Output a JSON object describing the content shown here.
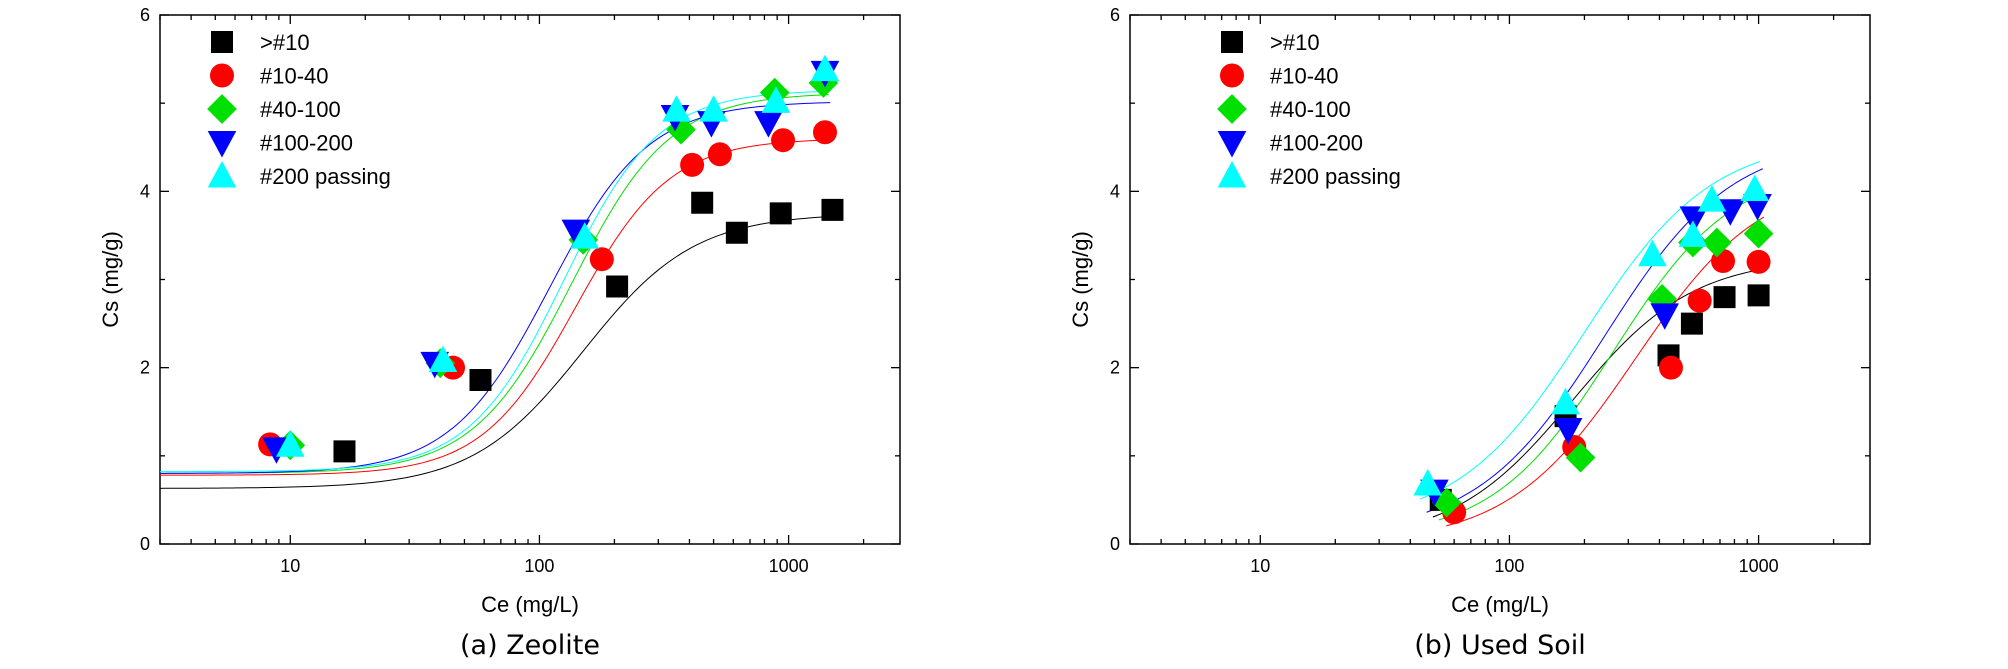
{
  "colors": {
    ">#10": "#000000",
    "#10-40": "#ff0000",
    "#40-100": "#00e000",
    "#100-200": "#0000ff",
    "#200 passing": "#00ffff"
  },
  "chart_data": [
    {
      "type": "scatter",
      "caption": "(a) Zeolite",
      "xlabel": "Ce (mg/L)",
      "ylabel": "Cs (mg/g)",
      "x_scale": "log",
      "xlim": [
        3,
        2800
      ],
      "ylim": [
        0,
        6
      ],
      "x_ticks": [
        10,
        100,
        1000
      ],
      "x_tick_labels": [
        "10",
        "100",
        "1000"
      ],
      "y_ticks": [
        0,
        2,
        4,
        6
      ],
      "y_tick_labels": [
        "0",
        "2",
        "4",
        "6"
      ],
      "legend_position": "top-left",
      "series": [
        {
          "name": ">#10",
          "marker": "square",
          "x": [
            16.5,
            58,
            205,
            450,
            620,
            930,
            1500
          ],
          "y": [
            1.05,
            1.86,
            2.92,
            3.87,
            3.53,
            3.75,
            3.79
          ],
          "fit": {
            "a1": 0.63,
            "a2": 3.75,
            "x0": 150,
            "p": 1.95
          }
        },
        {
          "name": "#10-40",
          "marker": "circle",
          "x": [
            8.3,
            45,
            178,
            410,
            530,
            950,
            1400
          ],
          "y": [
            1.13,
            2.0,
            3.23,
            4.3,
            4.42,
            4.58,
            4.67
          ],
          "fit": {
            "a1": 0.78,
            "a2": 4.6,
            "x0": 140,
            "p": 2.3
          }
        },
        {
          "name": "#40-100",
          "marker": "diamond",
          "x": [
            10,
            40,
            150,
            370,
            880,
            1380
          ],
          "y": [
            1.12,
            2.05,
            3.45,
            4.7,
            5.12,
            5.23
          ],
          "fit": {
            "a1": 0.8,
            "a2": 5.12,
            "x0": 135,
            "p": 2.2
          }
        },
        {
          "name": "#100-200",
          "marker": "triangle-down",
          "x": [
            8.8,
            38,
            140,
            350,
            490,
            830,
            1400
          ],
          "y": [
            1.08,
            2.05,
            3.55,
            4.85,
            4.78,
            4.78,
            5.35
          ],
          "fit": {
            "a1": 0.8,
            "a2": 5.02,
            "x0": 110,
            "p": 2.2
          }
        },
        {
          "name": "#200 passing",
          "marker": "triangle-up",
          "x": [
            10,
            41,
            152,
            355,
            500,
            890,
            1400
          ],
          "y": [
            1.12,
            2.08,
            3.48,
            4.92,
            4.92,
            5.02,
            5.38
          ],
          "fit": {
            "a1": 0.82,
            "a2": 5.15,
            "x0": 125,
            "p": 2.3
          }
        }
      ]
    },
    {
      "type": "scatter",
      "caption": "(b) Used Soil",
      "xlabel": "Ce (mg/L)",
      "ylabel": "Cs (mg/g)",
      "x_scale": "log",
      "xlim": [
        3,
        2800
      ],
      "ylim": [
        0,
        6
      ],
      "x_ticks": [
        10,
        100,
        1000
      ],
      "x_tick_labels": [
        "10",
        "100",
        "1000"
      ],
      "y_ticks": [
        0,
        2,
        4,
        6
      ],
      "y_tick_labels": [
        "0",
        "2",
        "4",
        "6"
      ],
      "legend_position": "top-left",
      "series": [
        {
          "name": ">#10",
          "marker": "square",
          "x": [
            53,
            168,
            435,
            540,
            730,
            1000
          ],
          "y": [
            0.5,
            1.45,
            2.14,
            2.5,
            2.8,
            2.82
          ],
          "fit": {
            "a1": 0.02,
            "a2": 3.25,
            "x0": 180,
            "p": 1.8
          }
        },
        {
          "name": "#10-40",
          "marker": "circle",
          "x": [
            60,
            182,
            445,
            580,
            720,
            1000
          ],
          "y": [
            0.36,
            1.1,
            2.0,
            2.76,
            3.21,
            3.2
          ],
          "fit": {
            "a1": 0.0,
            "a2": 4.2,
            "x0": 320,
            "p": 1.7
          }
        },
        {
          "name": "#40-100",
          "marker": "diamond",
          "x": [
            56,
            193,
            410,
            545,
            680,
            1000
          ],
          "y": [
            0.47,
            0.98,
            2.78,
            3.42,
            3.42,
            3.52
          ],
          "fit": {
            "a1": 0.05,
            "a2": 4.3,
            "x0": 260,
            "p": 1.8
          }
        },
        {
          "name": "#100-200",
          "marker": "triangle-down",
          "x": [
            50,
            172,
            420,
            550,
            770,
            990
          ],
          "y": [
            0.6,
            1.3,
            2.6,
            3.7,
            3.78,
            3.84
          ],
          "fit": {
            "a1": 0.1,
            "a2": 4.6,
            "x0": 240,
            "p": 1.7
          }
        },
        {
          "name": "#200 passing",
          "marker": "triangle-up",
          "x": [
            47,
            168,
            375,
            545,
            650,
            965
          ],
          "y": [
            0.68,
            1.6,
            3.28,
            3.5,
            3.9,
            4.02
          ],
          "fit": {
            "a1": 0.2,
            "a2": 4.6,
            "x0": 200,
            "p": 1.7
          }
        }
      ]
    }
  ]
}
